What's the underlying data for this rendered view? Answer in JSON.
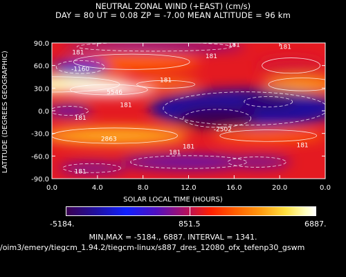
{
  "title_line1": "NEUTRAL ZONAL WIND (+EAST) (cm/s)",
  "title_line2": "DAY =   80   UT =   0.08   ZP =   -7.00   MEAN ALTITUDE =   96  km",
  "colorbar": {
    "min_label": "-5184.",
    "mid_label": "851.5",
    "max_label": "6887."
  },
  "stats_line": "MIN,MAX =      -5184.,      6887.  INTERVAL =      1341.",
  "file_path": "/oim3/emery/tiegcm_1.94.2/tiegcm-linux/s887_dres_12080_ofx_tefenp30_gswm",
  "chart_data": {
    "type": "heatmap",
    "title": "NEUTRAL ZONAL WIND (+EAST) (cm/s)",
    "xlabel": "SOLAR LOCAL TIME (HOURS)",
    "ylabel": "LATITUDE (DEGREES GEOGRAPHIC)",
    "xlim": [
      0,
      24
    ],
    "ylim": [
      -90,
      90
    ],
    "xticks": [
      "0.0",
      "4.0",
      "8.0",
      "12.0",
      "16.0",
      "20.0",
      "0.0"
    ],
    "yticks": [
      "90.0",
      "60.0",
      "30.0",
      "0.0",
      "-30.0",
      "-60.0",
      "-90.0"
    ],
    "value_range": [
      -5184,
      6887
    ],
    "contour_interval": 1341,
    "contour_labels": [
      {
        "text": "181",
        "x": 2.3,
        "y": 75
      },
      {
        "text": "181",
        "x": 16.0,
        "y": 85
      },
      {
        "text": "181",
        "x": 20.5,
        "y": 82
      },
      {
        "text": "-1160",
        "x": 2.5,
        "y": 53
      },
      {
        "text": "181",
        "x": 14.0,
        "y": 70
      },
      {
        "text": "181",
        "x": 10.0,
        "y": 38
      },
      {
        "text": "5546",
        "x": 5.5,
        "y": 22
      },
      {
        "text": "181",
        "x": 6.5,
        "y": 5
      },
      {
        "text": "181",
        "x": 2.5,
        "y": -12
      },
      {
        "text": "-2502",
        "x": 15.0,
        "y": -27
      },
      {
        "text": "2863",
        "x": 5.0,
        "y": -40
      },
      {
        "text": "181",
        "x": 12.0,
        "y": -50
      },
      {
        "text": "181",
        "x": 10.8,
        "y": -58
      },
      {
        "text": "181",
        "x": 22.0,
        "y": -48
      },
      {
        "text": "181",
        "x": 2.5,
        "y": -83
      }
    ],
    "regions": [
      {
        "x": 0,
        "y": 35,
        "rx": 7,
        "ry": 12,
        "v": 6400
      },
      {
        "x": 5,
        "y": 28,
        "rx": 4,
        "ry": 8,
        "v": 6887
      },
      {
        "x": 10,
        "y": 35,
        "rx": 3,
        "ry": 6,
        "v": 3900
      },
      {
        "x": 22,
        "y": 35,
        "rx": 3.5,
        "ry": 10,
        "v": 4200
      },
      {
        "x": 7,
        "y": 65,
        "rx": 6,
        "ry": 12,
        "v": 3000
      },
      {
        "x": 21,
        "y": 60,
        "rx": 3,
        "ry": 12,
        "v": 1200
      },
      {
        "x": 2.5,
        "y": 58,
        "rx": 2.5,
        "ry": 10,
        "v": -1160
      },
      {
        "x": 5.5,
        "y": -33,
        "rx": 6.5,
        "ry": 12,
        "v": 4500
      },
      {
        "x": 19,
        "y": -33,
        "rx": 5,
        "ry": 9,
        "v": 3000
      },
      {
        "x": 17,
        "y": 3,
        "rx": 8.5,
        "ry": 26,
        "v": -3800
      },
      {
        "x": 14.5,
        "y": -10,
        "rx": 3.5,
        "ry": 14,
        "v": -5184
      },
      {
        "x": 19,
        "y": 12,
        "rx": 2.5,
        "ry": 8,
        "v": -4800
      },
      {
        "x": 1.5,
        "y": 0,
        "rx": 2,
        "ry": 7,
        "v": -800
      },
      {
        "x": 12,
        "y": -68,
        "rx": 6,
        "ry": 10,
        "v": -500
      },
      {
        "x": 3.5,
        "y": -76,
        "rx": 3,
        "ry": 7,
        "v": -400
      },
      {
        "x": 18,
        "y": -68,
        "rx": 3,
        "ry": 8,
        "v": -300
      },
      {
        "x": 9,
        "y": 85,
        "rx": 8,
        "ry": 7,
        "v": -200
      }
    ]
  }
}
